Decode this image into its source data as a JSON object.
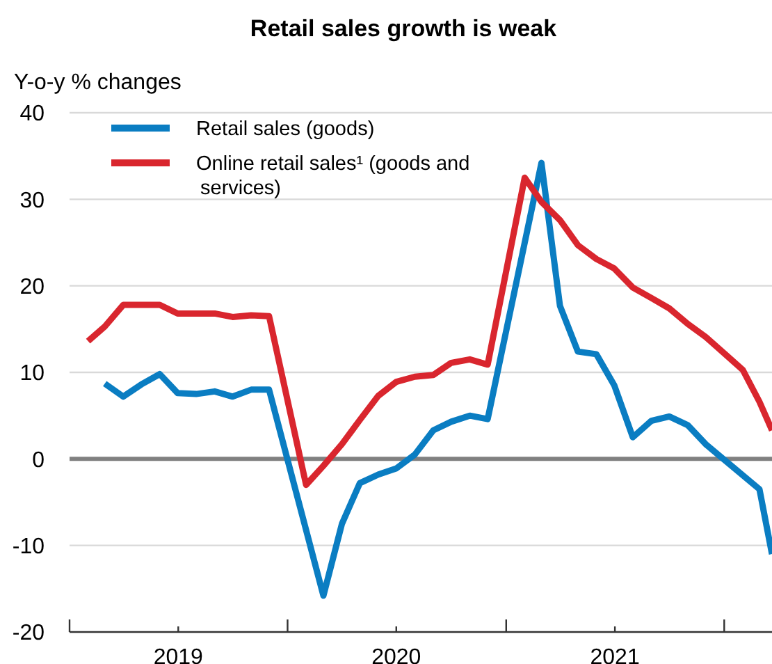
{
  "chart_data": {
    "type": "line",
    "title": "Retail sales growth is weak",
    "ylabel": "Y-o-y % changes",
    "xlim": [
      "2019-01-01",
      "2022-03-22"
    ],
    "xticks": [
      {
        "value": "2019-01-01",
        "label": null
      },
      {
        "value": "2019-07-02",
        "label": "2019"
      },
      {
        "value": "2020-01-01",
        "label": null
      },
      {
        "value": "2020-07-01",
        "label": "2020"
      },
      {
        "value": "2021-01-01",
        "label": null
      },
      {
        "value": "2021-07-02",
        "label": "2021"
      },
      {
        "value": "2022-01-01",
        "label": null
      }
    ],
    "ylim": [
      -20,
      40
    ],
    "yticks": [
      -20,
      -10,
      0,
      10,
      20,
      30,
      40
    ],
    "grid": "y",
    "legend": "top left",
    "line_style": "solid",
    "ref_lines": [
      {
        "axis": "y",
        "value": 0,
        "color": "#808080"
      }
    ],
    "series": [
      {
        "name": "Retail sales (goods)",
        "color": "#0a7dc2",
        "x": [
          "2019-03-01",
          "2019-04-01",
          "2019-05-01",
          "2019-06-01",
          "2019-07-01",
          "2019-08-01",
          "2019-09-01",
          "2019-10-01",
          "2019-11-01",
          "2019-12-01",
          "2020-03-01",
          "2020-04-01",
          "2020-05-01",
          "2020-06-01",
          "2020-07-01",
          "2020-08-01",
          "2020-09-01",
          "2020-10-01",
          "2020-11-01",
          "2020-12-01",
          "2021-03-01",
          "2021-04-01",
          "2021-05-01",
          "2021-06-01",
          "2021-07-01",
          "2021-08-01",
          "2021-09-01",
          "2021-10-01",
          "2021-11-01",
          "2021-12-01",
          "2022-03-01",
          "2022-03-22"
        ],
        "values": [
          8.7,
          7.2,
          8.6,
          9.8,
          7.6,
          7.5,
          7.8,
          7.2,
          8.0,
          8.0,
          -15.8,
          -7.5,
          -2.8,
          -1.8,
          -1.1,
          0.5,
          3.3,
          4.3,
          5.0,
          4.6,
          34.2,
          17.7,
          12.4,
          12.1,
          8.5,
          2.5,
          4.4,
          4.9,
          3.9,
          1.7,
          -3.5,
          -11.0
        ]
      },
      {
        "name": "Online retail sales¹ (goods and services)",
        "color": "#d9262e",
        "x": [
          "2019-02-01",
          "2019-03-01",
          "2019-04-01",
          "2019-05-01",
          "2019-06-01",
          "2019-07-01",
          "2019-08-01",
          "2019-09-01",
          "2019-10-01",
          "2019-11-01",
          "2019-12-01",
          "2020-02-01",
          "2020-03-01",
          "2020-04-01",
          "2020-05-01",
          "2020-06-01",
          "2020-07-01",
          "2020-08-01",
          "2020-09-01",
          "2020-10-01",
          "2020-11-01",
          "2020-12-01",
          "2021-02-01",
          "2021-03-01",
          "2021-04-01",
          "2021-05-01",
          "2021-06-01",
          "2021-07-01",
          "2021-08-01",
          "2021-09-01",
          "2021-10-01",
          "2021-11-01",
          "2021-12-01",
          "2022-02-01",
          "2022-03-01",
          "2022-03-22"
        ],
        "values": [
          13.6,
          15.3,
          17.8,
          17.8,
          17.8,
          16.8,
          16.8,
          16.8,
          16.4,
          16.6,
          16.5,
          -3.0,
          -0.8,
          1.7,
          4.5,
          7.3,
          8.9,
          9.5,
          9.7,
          11.1,
          11.5,
          10.9,
          32.5,
          29.7,
          27.6,
          24.7,
          23.1,
          22.0,
          19.8,
          18.6,
          17.4,
          15.6,
          14.1,
          10.3,
          6.6,
          3.3
        ]
      }
    ]
  }
}
